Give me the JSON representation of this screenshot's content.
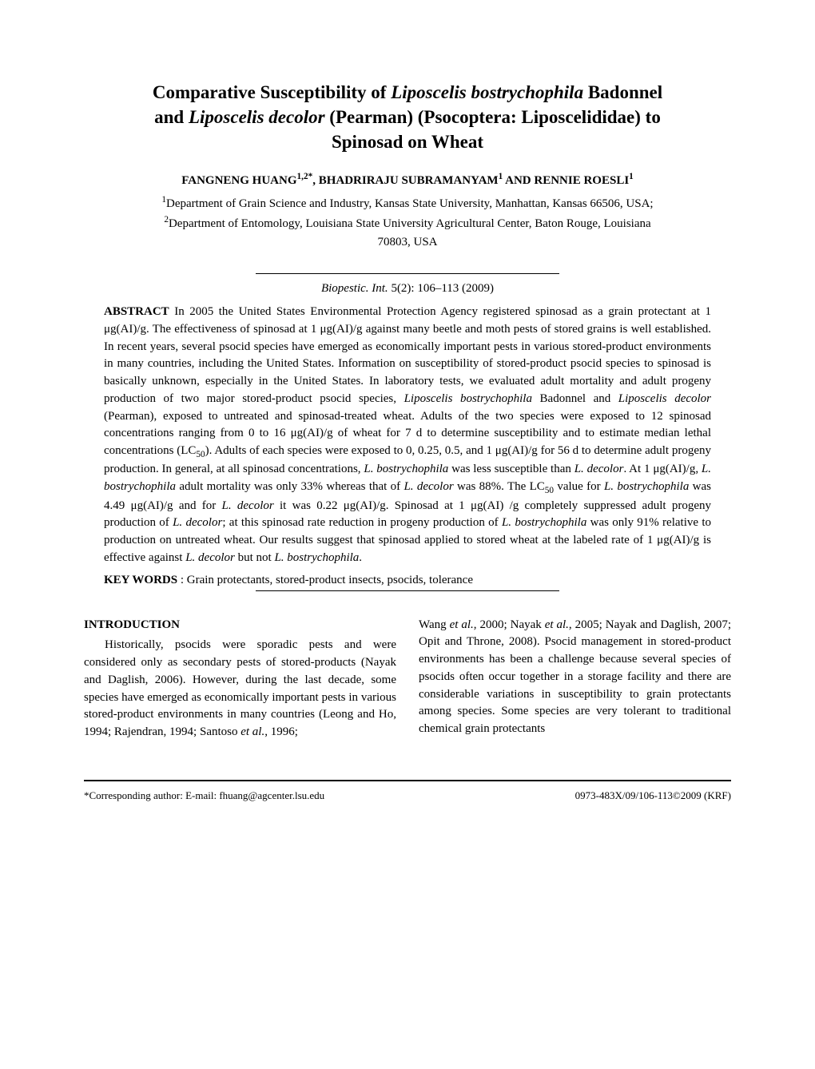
{
  "title_line1": "Comparative Susceptibility of ",
  "title_italic1": "Liposcelis bostrychophila",
  "title_line1b": " Badonnel",
  "title_line2a": "and ",
  "title_italic2": "Liposcelis decolor",
  "title_line2b": " (Pearman) (Psocoptera: Liposcelididae) to",
  "title_line3": "Spinosad on Wheat",
  "authors": "FANGNENG HUANG",
  "authors_sup1": "1,2*",
  "authors_mid": ", BHADRIRAJU SUBRAMANYAM",
  "authors_sup2": "1",
  "authors_mid2": " AND RENNIE ROESLI",
  "authors_sup3": "1",
  "affil1_sup": "1",
  "affil1": "Department of Grain Science and Industry, Kansas State University, Manhattan, Kansas 66506, USA;",
  "affil2_sup": "2",
  "affil2": "Department of Entomology, Louisiana State University Agricultural Center, Baton Rouge, Louisiana",
  "affil2_line2": "70803, USA",
  "citation_italic": "Biopestic. Int.",
  "citation_rest": " 5(2): 106–113 (2009)",
  "abstract_label": "ABSTRACT",
  "abstract_text1": " In 2005 the United States Environmental Protection Agency registered spinosad as a grain protectant at 1 μg(AI)/g. The effectiveness of spinosad at 1 μg(AI)/g against many beetle and moth pests of stored grains is well established. In recent years, several psocid species have emerged as economically important pests in various stored-product environments in many countries, including the United States. Information on susceptibility of stored-product psocid species to spinosad is basically unknown, especially in the United States. In laboratory tests, we evaluated adult mortality and adult progeny production of two major stored-product psocid species, ",
  "abstract_italic1": "Liposcelis bostrychophila",
  "abstract_text2": " Badonnel and ",
  "abstract_italic2": "Liposcelis decolor",
  "abstract_text3": " (Pearman), exposed to untreated and spinosad-treated wheat.  Adults of the two species were exposed to 12 spinosad concentrations ranging from 0 to 16 μg(AI)/g of wheat for 7 d to determine susceptibility and to estimate median lethal concentrations (LC",
  "abstract_sub1": "50",
  "abstract_text4": ").  Adults of each species were exposed to 0, 0.25, 0.5, and 1 μg(AI)/g for 56 d to determine adult progeny production.  In general, at all spinosad concentrations, ",
  "abstract_italic3": "L. bostrychophila",
  "abstract_text5": " was less susceptible than ",
  "abstract_italic4": "L. decolor",
  "abstract_text6": ".  At 1 μg(AI)/g, ",
  "abstract_italic5": "L. bostrychophila",
  "abstract_text7": " adult mortality was only 33% whereas that of ",
  "abstract_italic6": "L. decolor",
  "abstract_text8": " was 88%.  The LC",
  "abstract_sub2": "50",
  "abstract_text9": " value for ",
  "abstract_italic7": "L. bostrychophila",
  "abstract_text10": " was 4.49 μg(AI)/g and for ",
  "abstract_italic8": "L. decolor",
  "abstract_text11": " it was 0.22 μg(AI)/g.  Spinosad at 1 μg(AI) /g completely suppressed adult progeny production of ",
  "abstract_italic9": "L. decolor",
  "abstract_text12": "; at this spinosad rate reduction in progeny production of  ",
  "abstract_italic10": "L. bostrychophila",
  "abstract_text13": " was only 91% relative to production on untreated wheat. Our results suggest that spinosad applied to stored wheat at the labeled rate of 1 μg(AI)/g is effective against ",
  "abstract_italic11": "L. decolor",
  "abstract_text14": " but not ",
  "abstract_italic12": "L. bostrychophila",
  "abstract_text15": ".",
  "keywords_label": "KEY WORDS",
  "keywords_text": " : Grain protectants, stored-product insects, psocids, tolerance",
  "intro_heading": "INTRODUCTION",
  "col1_para1": "Historically, psocids were sporadic pests and were considered only as secondary pests of stored-products (Nayak and Daglish, 2006). However, during the last decade, some species have emerged as economically important pests in various stored-product environments in many countries (Leong and Ho, 1994; Rajendran, 1994; Santoso ",
  "col1_italic1": "et al.",
  "col1_para1b": ", 1996;",
  "col2_para1a": "Wang ",
  "col2_italic1": "et al.",
  "col2_para1b": ", 2000; Nayak ",
  "col2_italic2": "et al.",
  "col2_para1c": ", 2005; Nayak and Daglish, 2007; Opit and Throne, 2008). Psocid management in stored-product environments has been a challenge because several species of psocids often occur together in a storage facility and there are considerable variations in susceptibility to grain protectants among species. Some species are very tolerant to traditional chemical grain protectants",
  "corresponding": "*Corresponding author: E-mail: fhuang@agcenter.lsu.edu",
  "copyright": "0973-483X/09/106-113©2009 (KRF)"
}
